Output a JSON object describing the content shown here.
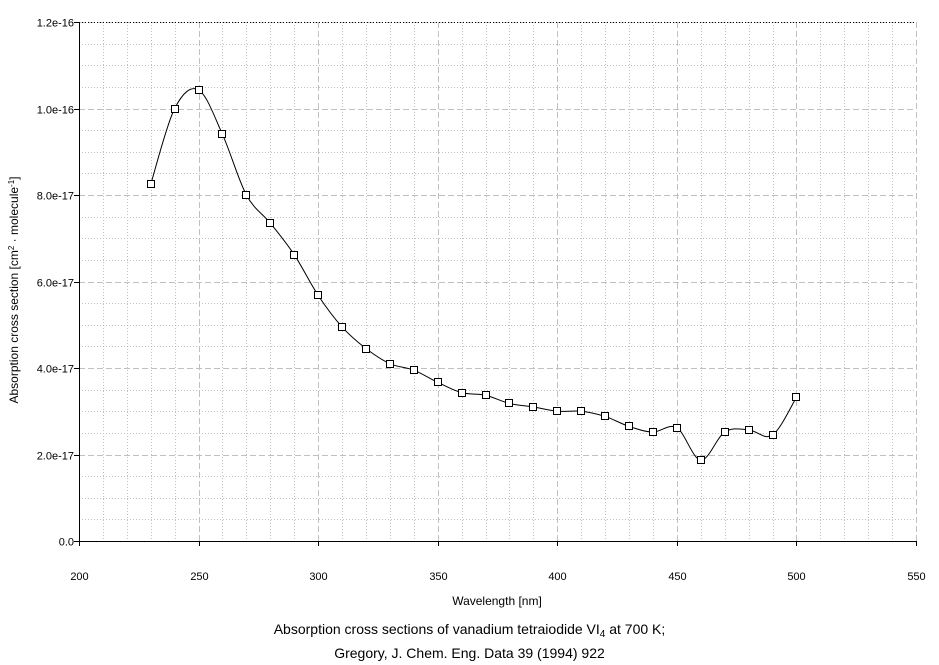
{
  "chart_data": {
    "type": "line",
    "title": "",
    "caption": {
      "line1_prefix": "Absorption cross sections of vanadium tetraiodide VI",
      "line1_sub": "4",
      "line1_suffix": " at 700 K;",
      "line2": "Gregory, J. Chem. Eng. Data 39 (1994) 922"
    },
    "xlabel": "Wavelength [nm]",
    "ylabel": {
      "prefix": "Absorption cross section [cm",
      "sup1": "2",
      "middle": " · molecule",
      "sup2": "-1",
      "suffix": "]"
    },
    "xlim": [
      200,
      550
    ],
    "ylim": [
      0,
      1.2e-16
    ],
    "x_ticks": [
      200,
      250,
      300,
      350,
      400,
      450,
      500,
      550
    ],
    "x_tick_labels": [
      "200",
      "250",
      "300",
      "350",
      "400",
      "450",
      "500",
      "550"
    ],
    "y_ticks": [
      0,
      2e-17,
      4e-17,
      6e-17,
      8e-17,
      1e-16,
      1.2e-16
    ],
    "y_tick_labels": [
      "0.0",
      "2.0e-17",
      "4.0e-17",
      "6.0e-17",
      "8.0e-17",
      "1.0e-16",
      "1.2e-16"
    ],
    "grid": true,
    "marker": "open-square",
    "colors": {
      "line": "#000000",
      "major_grid": "#c0c0c0",
      "minor_grid": "#c0c0c0"
    },
    "series": [
      {
        "x": [
          230,
          240,
          250,
          260,
          270,
          280,
          290,
          300,
          310,
          320,
          330,
          340,
          350,
          360,
          370,
          380,
          390,
          400,
          410,
          420,
          430,
          440,
          450,
          460,
          470,
          480,
          490,
          500
        ],
        "y": [
          8.25e-17,
          1e-16,
          1.043e-16,
          9.4e-17,
          8e-17,
          7.35e-17,
          6.62e-17,
          5.68e-17,
          4.95e-17,
          4.45e-17,
          4.1e-17,
          3.95e-17,
          3.67e-17,
          3.43e-17,
          3.37e-17,
          3.18e-17,
          3.1e-17,
          3e-17,
          3e-17,
          2.88e-17,
          2.65e-17,
          2.52e-17,
          2.62e-17,
          1.87e-17,
          2.52e-17,
          2.57e-17,
          2.45e-17,
          3.32e-17
        ]
      }
    ]
  }
}
